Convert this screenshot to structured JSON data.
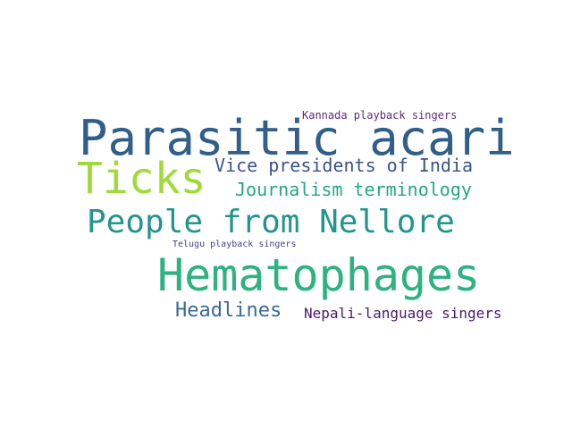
{
  "words": [
    {
      "text": "Parasitic acari",
      "color": "#2f5f8a"
    },
    {
      "text": "Ticks",
      "color": "#a0da39"
    },
    {
      "text": "Vice presidents of India",
      "color": "#3b528b"
    },
    {
      "text": "Journalism terminology",
      "color": "#22a884"
    },
    {
      "text": "People from Nellore",
      "color": "#24958c"
    },
    {
      "text": "Hematophages",
      "color": "#2db37f"
    },
    {
      "text": "Headlines",
      "color": "#3b6a97"
    },
    {
      "text": "Nepali-language singers",
      "color": "#481a6c"
    },
    {
      "text": "Kannada playback singers",
      "color": "#5c2a7e"
    },
    {
      "text": "Telugu playback singers",
      "color": "#404688"
    }
  ]
}
